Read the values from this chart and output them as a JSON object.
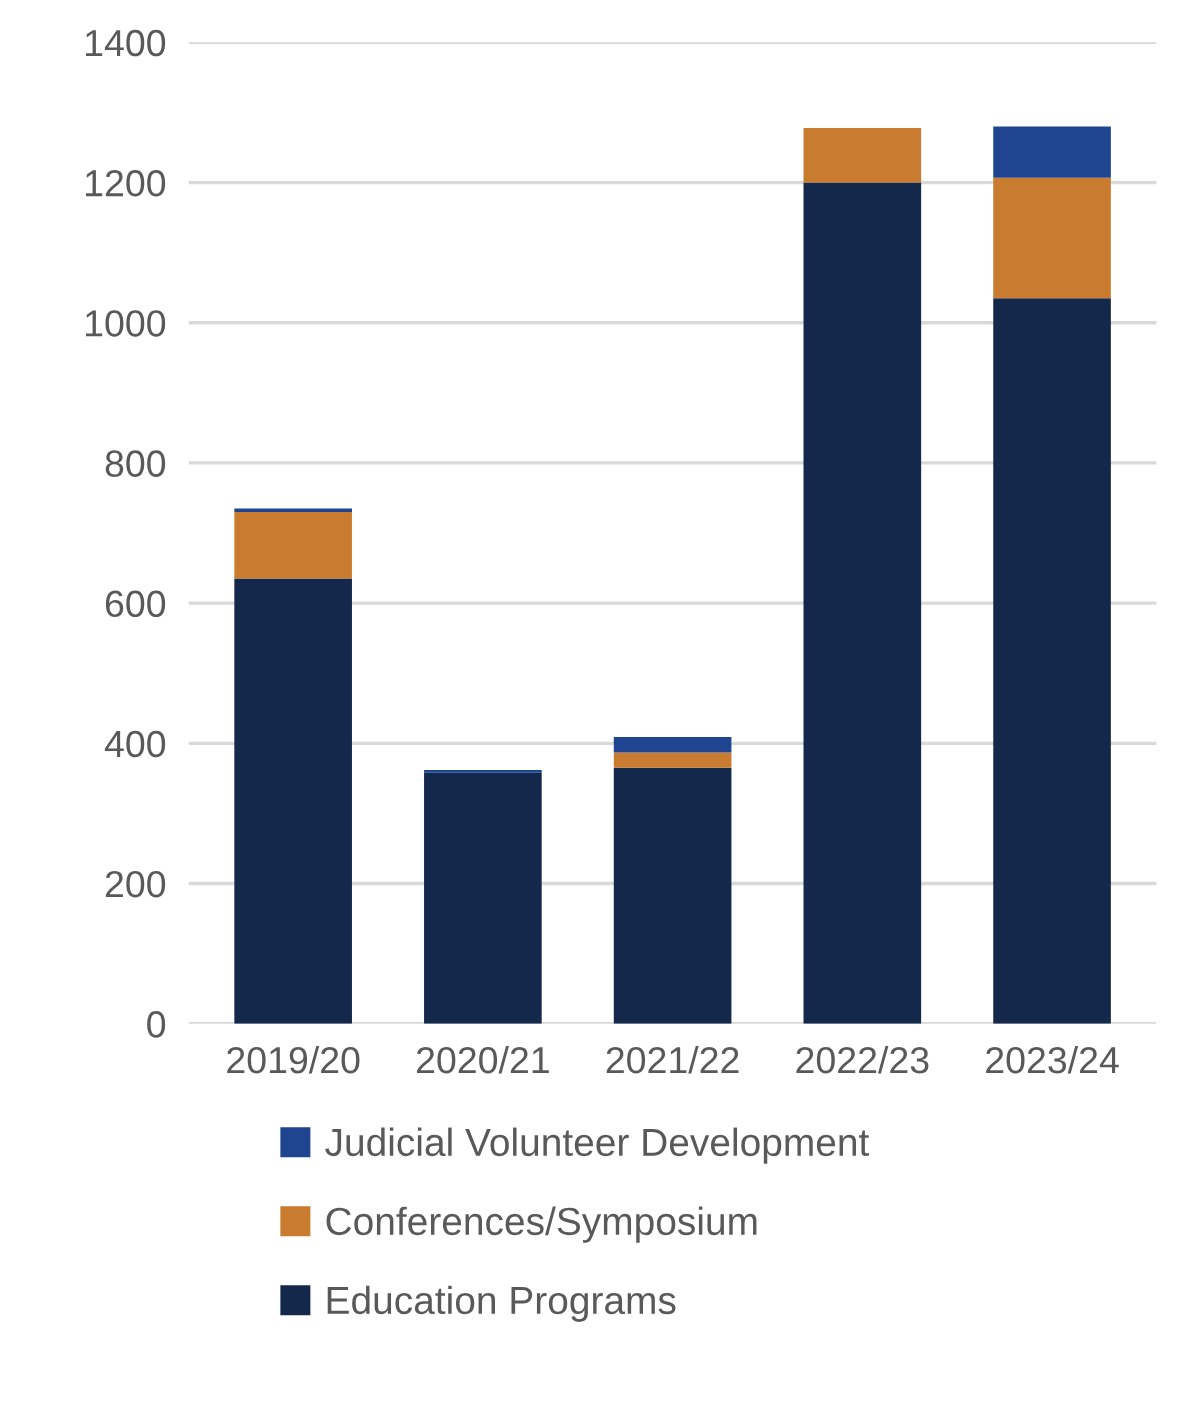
{
  "chart_data": {
    "type": "bar",
    "stacked": true,
    "categories": [
      "2019/20",
      "2020/21",
      "2021/22",
      "2022/23",
      "2023/24"
    ],
    "series": [
      {
        "name": "Education Programs",
        "color": "#14284b",
        "values": [
          635,
          358,
          365,
          1200,
          1035
        ]
      },
      {
        "name": "Conferences/Symposium",
        "color": "#c97c30",
        "values": [
          95,
          null,
          22,
          78,
          172
        ]
      },
      {
        "name": "Judicial Volunteer Development",
        "color": "#1f4590",
        "values": [
          5,
          4,
          22,
          null,
          73
        ]
      }
    ],
    "ylim": [
      0,
      1400
    ],
    "yticks": [
      0,
      200,
      400,
      600,
      800,
      1000,
      1200,
      1400
    ],
    "grid": "y",
    "legend": "bottom"
  }
}
